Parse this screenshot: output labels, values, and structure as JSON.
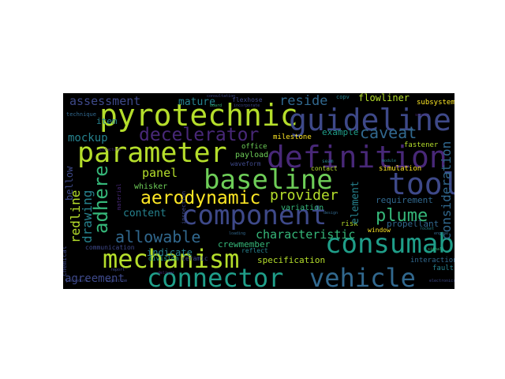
{
  "colors": {
    "background": "#000000",
    "palette": [
      "#440154",
      "#482878",
      "#3e4989",
      "#31688e",
      "#26828e",
      "#1f9e89",
      "#35b779",
      "#6ece58",
      "#b5de2b",
      "#fde725"
    ]
  },
  "words": {
    "pyrotechnic": "pyrotechnic",
    "guideline": "guideline",
    "parameter": "parameter",
    "definition": "definition",
    "baseline": "baseline",
    "tool": "tool",
    "component": "component",
    "consumable": "consumable",
    "mechanism": "mechanism",
    "connector": "connector",
    "vehicle": "vehicle",
    "decelerator": "decelerator",
    "aerodynamic": "aerodynamic",
    "plume": "plume",
    "provider": "provider",
    "caveat": "caveat",
    "assessment": "assessment",
    "reside": "reside",
    "mature": "mature",
    "mockup": "mockup",
    "panel": "panel",
    "adhere": "adhere",
    "drawing": "drawing",
    "redline": "redline",
    "allowable": "allowable",
    "characteristic": "characteristic",
    "agreement": "agreement",
    "consideration": "consideration",
    "element": "element",
    "content": "content",
    "example": "example",
    "flowliner": "flowliner",
    "subsystem": "subsystem",
    "item": "item",
    "whisker": "whisker",
    "indicate": "indicate",
    "specification": "specification",
    "crewmember": "crewmember",
    "requirement": "requirement",
    "propellant": "propellant",
    "variation": "variation",
    "payload": "payload",
    "milestone": "milestone",
    "office": "office",
    "bellow": "bellow",
    "interaction": "interaction",
    "fault": "fault",
    "simulation": "simulation",
    "fastener": "fastener",
    "contact": "contact",
    "risk": "risk",
    "window": "window",
    "division": "division",
    "ceramic": "ceramic",
    "communication": "communication",
    "reflect": "reflect",
    "waveform": "waveform",
    "flexhose": "flexhose",
    "technique": "technique",
    "copv": "copv",
    "seam": "seam",
    "inspection": "inspection",
    "chemical": "chemical",
    "material": "material",
    "board": "board",
    "procedure": "procedure",
    "report": "report",
    "incorporate": "incorporate",
    "consultation": "consultation",
    "structure": "structure",
    "rocket": "rocket",
    "electronics": "electronics",
    "algorithm": "algorithm",
    "deliver": "deliver",
    "engine": "engine",
    "signal": "signal",
    "module": "module",
    "sensor": "sensor",
    "design": "design",
    "loading": "loading"
  }
}
